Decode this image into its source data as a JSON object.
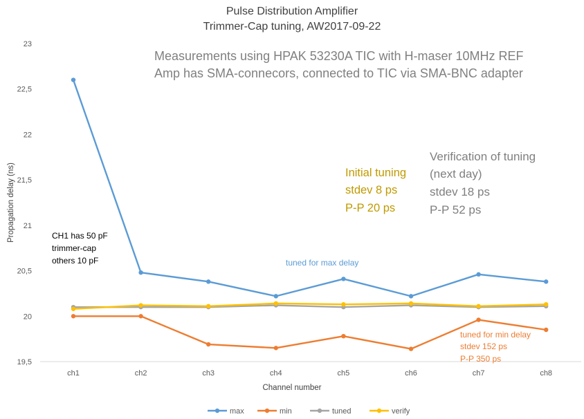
{
  "chart_data": {
    "type": "line",
    "title": "Pulse Distribution Amplifier",
    "subtitle": "Trimmer-Cap tuning, AW2017-09-22",
    "xlabel": "Channel number",
    "ylabel": "Propagation delay (ns)",
    "ylim": [
      19.5,
      23
    ],
    "yticks": [
      19.5,
      20,
      20.5,
      21,
      21.5,
      22,
      22.5,
      23
    ],
    "ytick_labels": [
      "19,5",
      "20",
      "20,5",
      "21",
      "21,5",
      "22",
      "22,5",
      "23"
    ],
    "grid": false,
    "legend_position": "bottom",
    "categories": [
      "ch1",
      "ch2",
      "ch3",
      "ch4",
      "ch5",
      "ch6",
      "ch7",
      "ch8"
    ],
    "series": [
      {
        "name": "max",
        "color": "#5b9bd5",
        "values": [
          22.6,
          20.48,
          20.38,
          20.22,
          20.41,
          20.22,
          20.46,
          20.38
        ]
      },
      {
        "name": "min",
        "color": "#ed7d31",
        "values": [
          20.0,
          20.0,
          19.69,
          19.65,
          19.78,
          19.64,
          19.96,
          19.85
        ]
      },
      {
        "name": "tuned",
        "color": "#a5a5a5",
        "values": [
          20.1,
          20.1,
          20.1,
          20.12,
          20.1,
          20.12,
          20.1,
          20.11
        ]
      },
      {
        "name": "verify",
        "color": "#ffc000",
        "values": [
          20.08,
          20.12,
          20.11,
          20.14,
          20.13,
          20.14,
          20.11,
          20.13
        ]
      }
    ],
    "annotations": {
      "measurement_line1": "Measurements using HPAK 53230A TIC with H-maser 10MHz REF",
      "measurement_line2": "Amp has SMA-connecors, connected to TIC via SMA-BNC adapter",
      "initial_line1": "Initial tuning",
      "initial_line2": "stdev 8 ps",
      "initial_line3": "P-P 20 ps",
      "verify_line1": "Verification of tuning",
      "verify_line2": "(next day)",
      "verify_line3": "stdev 18 ps",
      "verify_line4": "P-P 52 ps",
      "ch1_line1": "CH1 has 50 pF",
      "ch1_line2": "trimmer-cap",
      "ch1_line3": "others 10 pF",
      "max_note": "tuned for max delay",
      "min_line1": "tuned for min delay",
      "min_line2": "stdev 152 ps",
      "min_line3": "P-P 350 ps"
    }
  }
}
